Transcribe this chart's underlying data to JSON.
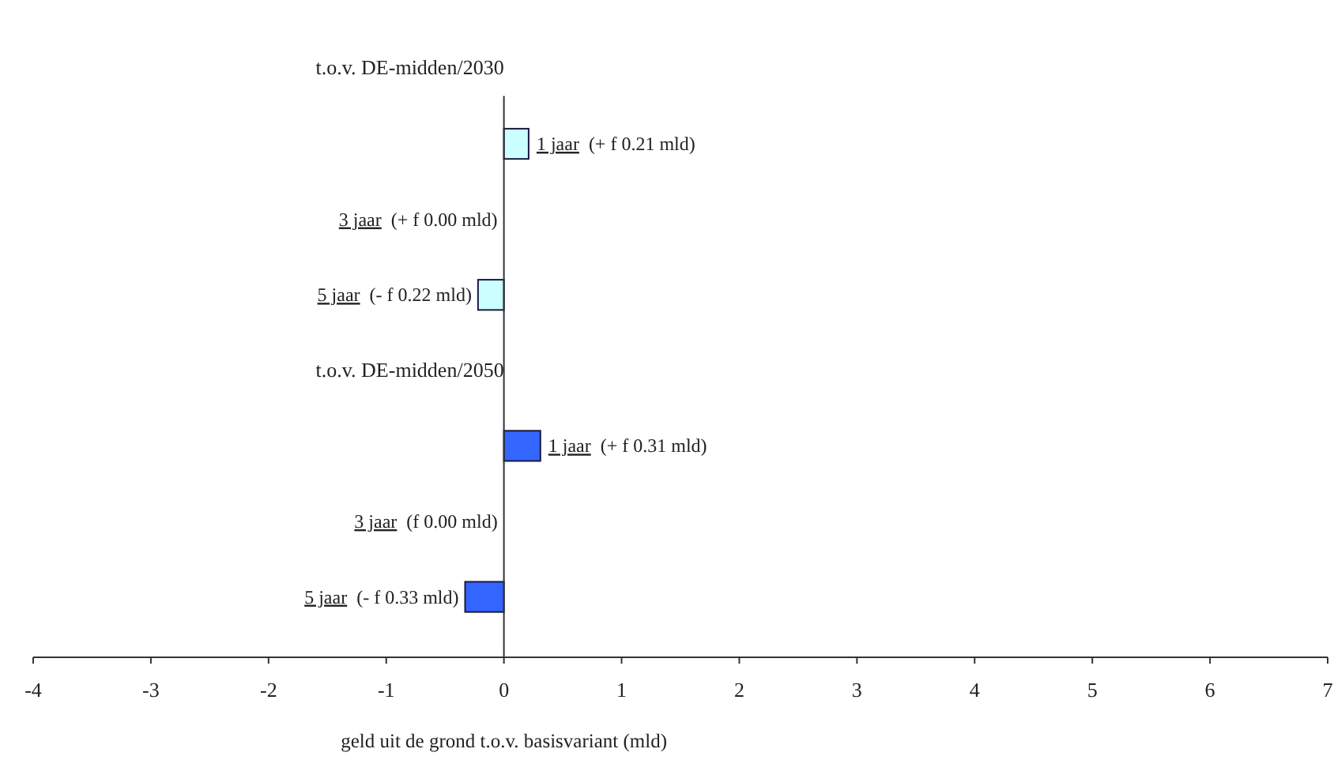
{
  "chart_data": {
    "type": "bar",
    "orientation": "horizontal",
    "xlabel": "geld uit de grond t.o.v. basisvariant (mld)",
    "categories": [
      "1 jaar",
      "3 jaar",
      "5 jaar",
      "1 jaar",
      "3 jaar",
      "5 jaar"
    ],
    "series": [
      {
        "name": "t.o.v. DE-midden/2030",
        "color": "#ccffff",
        "values": [
          0.21,
          0.0,
          -0.22,
          null,
          null,
          null
        ],
        "value_labels": [
          "(+ f 0.21 mld)",
          "(+ f 0.00 mld)",
          "(- f 0.22 mld)",
          null,
          null,
          null
        ]
      },
      {
        "name": "t.o.v. DE-midden/2050",
        "color": "#3366ff",
        "values": [
          null,
          null,
          null,
          0.31,
          0.0,
          -0.33
        ],
        "value_labels": [
          null,
          null,
          null,
          "(+ f 0.31 mld)",
          "(f 0.00 mld)",
          "(- f 0.33 mld)"
        ]
      }
    ],
    "xlim": [
      -4,
      7
    ],
    "xticks": [
      -4,
      -3,
      -2,
      -1,
      0,
      1,
      2,
      3,
      4,
      5,
      6,
      7
    ]
  }
}
